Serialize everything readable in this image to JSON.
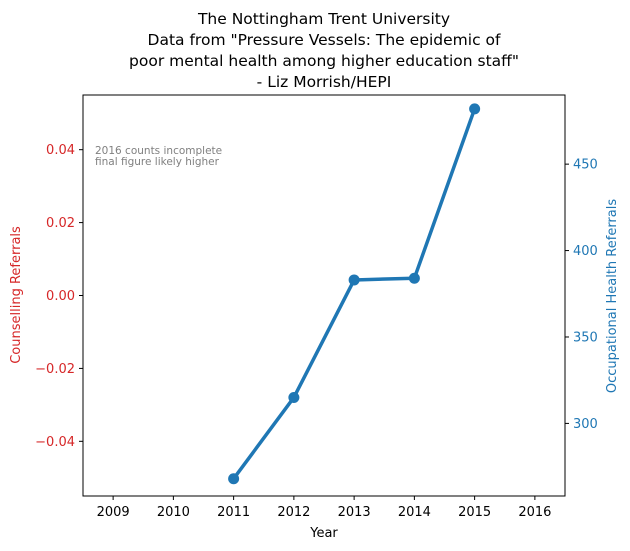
{
  "chart_data": {
    "type": "line",
    "title": [
      "The Nottingham Trent University",
      "Data from \"Pressure Vessels: The epidemic of",
      "poor mental health among higher education staff\"",
      "- Liz Morrish/HEPI"
    ],
    "xlabel": "Year",
    "xlim": [
      2008.5,
      2016.5
    ],
    "x_ticks": [
      "2009",
      "2010",
      "2011",
      "2012",
      "2013",
      "2014",
      "2015",
      "2016"
    ],
    "y_left": {
      "label": "Counselling Referrals",
      "color": "#d62728",
      "ylim": [
        -0.055,
        0.055
      ],
      "ticks": [
        "−0.04",
        "−0.02",
        "0.00",
        "0.02",
        "0.04"
      ],
      "tick_values": [
        -0.04,
        -0.02,
        0.0,
        0.02,
        0.04
      ]
    },
    "y_right": {
      "label": "Occupational Health Referrals",
      "color": "#1f77b4",
      "ylim": [
        258,
        490
      ],
      "ticks": [
        "300",
        "350",
        "400",
        "450"
      ],
      "tick_values": [
        300,
        350,
        400,
        450
      ]
    },
    "series": [
      {
        "axis": "right",
        "color": "#1f77b4",
        "x": [
          2011,
          2012,
          2013,
          2014,
          2015
        ],
        "y": [
          268,
          315,
          383,
          384,
          482
        ]
      }
    ],
    "annotations": [
      "2016 counts incomplete",
      "final figure likely higher"
    ],
    "grid": false,
    "legend": "none"
  }
}
